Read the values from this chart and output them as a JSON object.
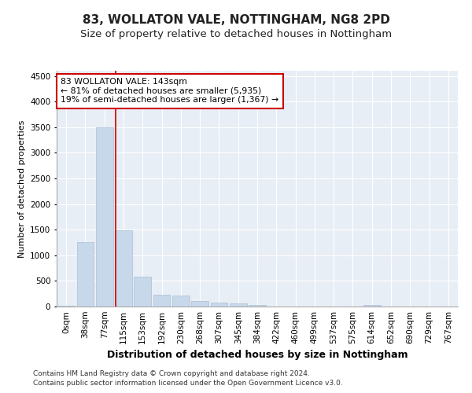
{
  "title1": "83, WOLLATON VALE, NOTTINGHAM, NG8 2PD",
  "title2": "Size of property relative to detached houses in Nottingham",
  "xlabel": "Distribution of detached houses by size in Nottingham",
  "ylabel": "Number of detached properties",
  "bar_color": "#c8d8eb",
  "bar_edge_color": "#aabfd4",
  "background_color": "#e8eef5",
  "grid_color": "#ffffff",
  "categories": [
    "0sqm",
    "38sqm",
    "77sqm",
    "115sqm",
    "153sqm",
    "192sqm",
    "230sqm",
    "268sqm",
    "307sqm",
    "345sqm",
    "384sqm",
    "422sqm",
    "460sqm",
    "499sqm",
    "537sqm",
    "575sqm",
    "614sqm",
    "652sqm",
    "690sqm",
    "729sqm",
    "767sqm"
  ],
  "values": [
    10,
    1250,
    3500,
    1480,
    590,
    230,
    215,
    110,
    75,
    55,
    30,
    5,
    0,
    0,
    0,
    0,
    30,
    0,
    0,
    0,
    0
  ],
  "ylim": [
    0,
    4600
  ],
  "yticks": [
    0,
    500,
    1000,
    1500,
    2000,
    2500,
    3000,
    3500,
    4000,
    4500
  ],
  "vline_x_index": 2.57,
  "vline_color": "#cc0000",
  "annotation_text": "83 WOLLATON VALE: 143sqm\n← 81% of detached houses are smaller (5,935)\n19% of semi-detached houses are larger (1,367) →",
  "annotation_box_color": "#ffffff",
  "annotation_box_edge": "#cc0000",
  "footer1": "Contains HM Land Registry data © Crown copyright and database right 2024.",
  "footer2": "Contains public sector information licensed under the Open Government Licence v3.0.",
  "title1_fontsize": 11,
  "title2_fontsize": 9.5,
  "tick_fontsize": 7.5,
  "ylabel_fontsize": 8,
  "xlabel_fontsize": 9,
  "footer_fontsize": 6.5
}
